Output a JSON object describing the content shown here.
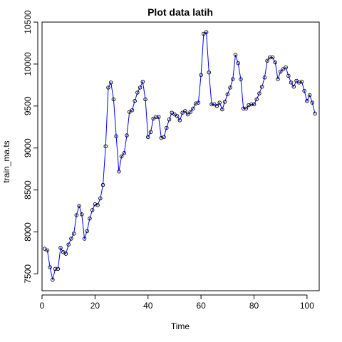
{
  "chart_data": {
    "type": "line",
    "title": "Plot data latih",
    "xlabel": "Time",
    "ylabel": "train_ma.ts",
    "xlim": [
      0,
      104.6
    ],
    "ylim": [
      7300,
      10500
    ],
    "x_ticks": [
      0,
      20,
      40,
      60,
      80,
      100
    ],
    "y_ticks": [
      7500,
      8000,
      8500,
      9000,
      9500,
      10000,
      10500
    ],
    "grid": false,
    "series": [
      {
        "color": "#0000ff",
        "markers": "open-circle",
        "x": [
          1,
          2,
          3,
          4,
          5,
          6,
          7,
          8,
          9,
          10,
          11,
          12,
          13,
          14,
          15,
          16,
          17,
          18,
          19,
          20,
          21,
          22,
          23,
          24,
          25,
          26,
          27,
          28,
          29,
          30,
          31,
          32,
          33,
          34,
          35,
          36,
          37,
          38,
          39,
          40,
          41,
          42,
          43,
          44,
          45,
          46,
          47,
          48,
          49,
          50,
          51,
          52,
          53,
          54,
          55,
          56,
          57,
          58,
          59,
          60,
          61,
          62,
          63,
          64,
          65,
          66,
          67,
          68,
          69,
          70,
          71,
          72,
          73,
          74,
          75,
          76,
          77,
          78,
          79,
          80,
          81,
          82,
          83,
          84,
          85,
          86,
          87,
          88,
          89,
          90,
          91,
          92,
          93,
          94,
          95,
          96,
          97,
          98,
          99,
          100,
          101,
          102,
          103
        ],
        "values": [
          7800,
          7780,
          7580,
          7430,
          7560,
          7560,
          7810,
          7760,
          7740,
          7850,
          7920,
          7980,
          8200,
          8310,
          8210,
          7920,
          8010,
          8160,
          8260,
          8330,
          8320,
          8400,
          8560,
          9020,
          9720,
          9780,
          9580,
          9140,
          8720,
          8900,
          8940,
          9150,
          9430,
          9450,
          9560,
          9660,
          9720,
          9790,
          9580,
          9130,
          9190,
          9350,
          9370,
          9370,
          9120,
          9130,
          9240,
          9340,
          9420,
          9400,
          9380,
          9330,
          9420,
          9440,
          9400,
          9430,
          9470,
          9530,
          9540,
          9870,
          10360,
          10380,
          9900,
          9520,
          9520,
          9500,
          9540,
          9460,
          9550,
          9640,
          9720,
          9820,
          10110,
          10010,
          9820,
          9470,
          9470,
          9510,
          9520,
          9520,
          9580,
          9650,
          9730,
          9840,
          10040,
          10080,
          10080,
          10020,
          9820,
          9910,
          9940,
          9960,
          9860,
          9780,
          9730,
          9800,
          9780,
          9790,
          9680,
          9560,
          9630,
          9540,
          9410
        ]
      }
    ]
  }
}
